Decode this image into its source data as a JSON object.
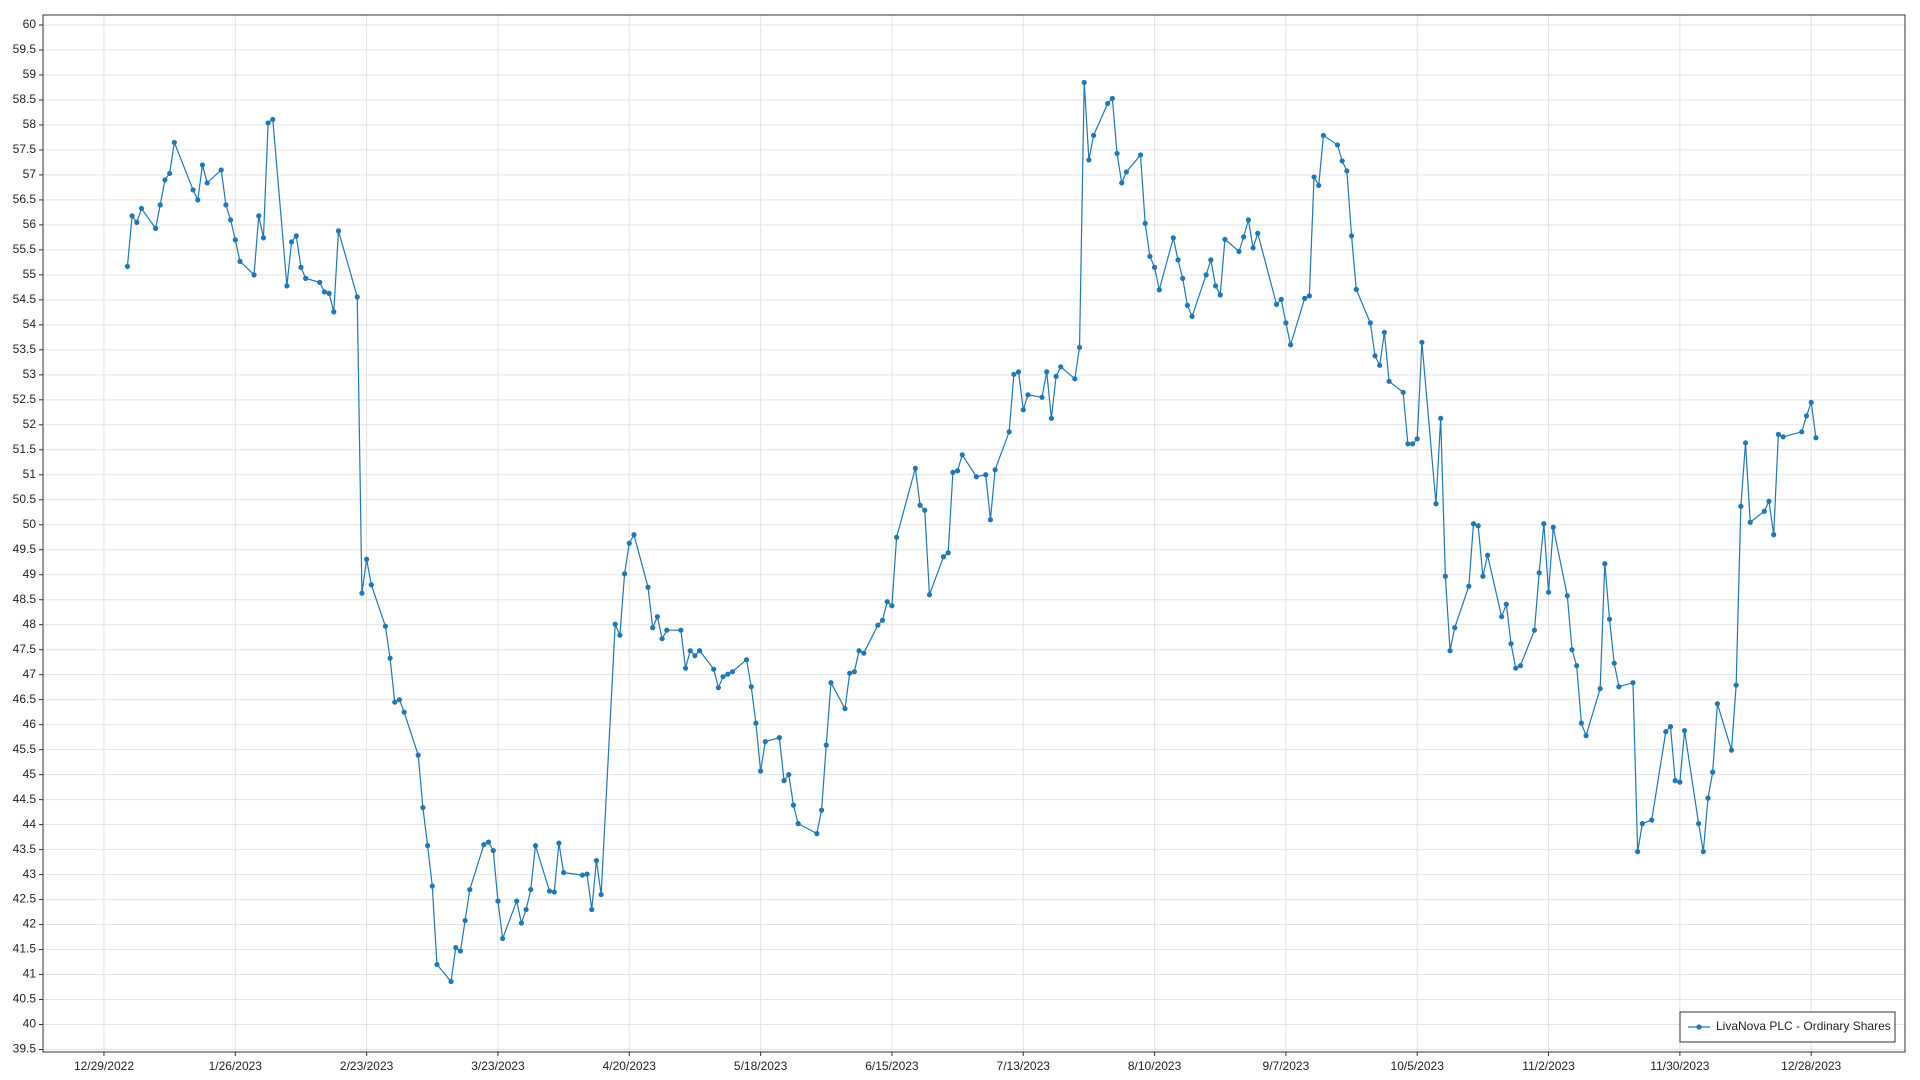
{
  "chart_data": {
    "type": "line",
    "series": [
      {
        "name": "LivaNova PLC - Ordinary Shares",
        "color": "#1f77b4",
        "x": [
          "2023-01-03",
          "2023-01-04",
          "2023-01-05",
          "2023-01-06",
          "2023-01-09",
          "2023-01-10",
          "2023-01-11",
          "2023-01-12",
          "2023-01-13",
          "2023-01-17",
          "2023-01-18",
          "2023-01-19",
          "2023-01-20",
          "2023-01-23",
          "2023-01-24",
          "2023-01-25",
          "2023-01-26",
          "2023-01-27",
          "2023-01-30",
          "2023-01-31",
          "2023-02-01",
          "2023-02-02",
          "2023-02-03",
          "2023-02-06",
          "2023-02-07",
          "2023-02-08",
          "2023-02-09",
          "2023-02-10",
          "2023-02-13",
          "2023-02-14",
          "2023-02-15",
          "2023-02-16",
          "2023-02-17",
          "2023-02-21",
          "2023-02-22",
          "2023-02-23",
          "2023-02-24",
          "2023-02-27",
          "2023-02-28",
          "2023-03-01",
          "2023-03-02",
          "2023-03-03",
          "2023-03-06",
          "2023-03-07",
          "2023-03-08",
          "2023-03-09",
          "2023-03-10",
          "2023-03-13",
          "2023-03-14",
          "2023-03-15",
          "2023-03-16",
          "2023-03-17",
          "2023-03-20",
          "2023-03-21",
          "2023-03-22",
          "2023-03-23",
          "2023-03-24",
          "2023-03-27",
          "2023-03-28",
          "2023-03-29",
          "2023-03-30",
          "2023-03-31",
          "2023-04-03",
          "2023-04-04",
          "2023-04-05",
          "2023-04-06",
          "2023-04-10",
          "2023-04-11",
          "2023-04-12",
          "2023-04-13",
          "2023-04-14",
          "2023-04-17",
          "2023-04-18",
          "2023-04-19",
          "2023-04-20",
          "2023-04-21",
          "2023-04-24",
          "2023-04-25",
          "2023-04-26",
          "2023-04-27",
          "2023-04-28",
          "2023-05-01",
          "2023-05-02",
          "2023-05-03",
          "2023-05-04",
          "2023-05-05",
          "2023-05-08",
          "2023-05-09",
          "2023-05-10",
          "2023-05-11",
          "2023-05-12",
          "2023-05-15",
          "2023-05-16",
          "2023-05-17",
          "2023-05-18",
          "2023-05-19",
          "2023-05-22",
          "2023-05-23",
          "2023-05-24",
          "2023-05-25",
          "2023-05-26",
          "2023-05-30",
          "2023-05-31",
          "2023-06-01",
          "2023-06-02",
          "2023-06-05",
          "2023-06-06",
          "2023-06-07",
          "2023-06-08",
          "2023-06-09",
          "2023-06-12",
          "2023-06-13",
          "2023-06-14",
          "2023-06-15",
          "2023-06-16",
          "2023-06-20",
          "2023-06-21",
          "2023-06-22",
          "2023-06-23",
          "2023-06-26",
          "2023-06-27",
          "2023-06-28",
          "2023-06-29",
          "2023-06-30",
          "2023-07-03",
          "2023-07-05",
          "2023-07-06",
          "2023-07-07",
          "2023-07-10",
          "2023-07-11",
          "2023-07-12",
          "2023-07-13",
          "2023-07-14",
          "2023-07-17",
          "2023-07-18",
          "2023-07-19",
          "2023-07-20",
          "2023-07-21",
          "2023-07-24",
          "2023-07-25",
          "2023-07-26",
          "2023-07-27",
          "2023-07-28",
          "2023-07-31",
          "2023-08-01",
          "2023-08-02",
          "2023-08-03",
          "2023-08-04",
          "2023-08-07",
          "2023-08-08",
          "2023-08-09",
          "2023-08-10",
          "2023-08-11",
          "2023-08-14",
          "2023-08-15",
          "2023-08-16",
          "2023-08-17",
          "2023-08-18",
          "2023-08-21",
          "2023-08-22",
          "2023-08-23",
          "2023-08-24",
          "2023-08-25",
          "2023-08-28",
          "2023-08-29",
          "2023-08-30",
          "2023-08-31",
          "2023-09-01",
          "2023-09-05",
          "2023-09-06",
          "2023-09-07",
          "2023-09-08",
          "2023-09-11",
          "2023-09-12",
          "2023-09-13",
          "2023-09-14",
          "2023-09-15",
          "2023-09-18",
          "2023-09-19",
          "2023-09-20",
          "2023-09-21",
          "2023-09-22",
          "2023-09-25",
          "2023-09-26",
          "2023-09-27",
          "2023-09-28",
          "2023-09-29",
          "2023-10-02",
          "2023-10-03",
          "2023-10-04",
          "2023-10-05",
          "2023-10-06",
          "2023-10-09",
          "2023-10-10",
          "2023-10-11",
          "2023-10-12",
          "2023-10-13",
          "2023-10-16",
          "2023-10-17",
          "2023-10-18",
          "2023-10-19",
          "2023-10-20",
          "2023-10-23",
          "2023-10-24",
          "2023-10-25",
          "2023-10-26",
          "2023-10-27",
          "2023-10-30",
          "2023-10-31",
          "2023-11-01",
          "2023-11-02",
          "2023-11-03",
          "2023-11-06",
          "2023-11-07",
          "2023-11-08",
          "2023-11-09",
          "2023-11-10",
          "2023-11-13",
          "2023-11-14",
          "2023-11-15",
          "2023-11-16",
          "2023-11-17",
          "2023-11-20",
          "2023-11-21",
          "2023-11-22",
          "2023-11-24",
          "2023-11-27",
          "2023-11-28",
          "2023-11-29",
          "2023-11-30",
          "2023-12-01",
          "2023-12-04",
          "2023-12-05",
          "2023-12-06",
          "2023-12-07",
          "2023-12-08",
          "2023-12-11",
          "2023-12-12",
          "2023-12-13",
          "2023-12-14",
          "2023-12-15",
          "2023-12-18",
          "2023-12-19",
          "2023-12-20",
          "2023-12-21",
          "2023-12-22",
          "2023-12-26",
          "2023-12-27",
          "2023-12-28",
          "2023-12-29"
        ],
        "values": [
          55.17,
          56.18,
          56.05,
          56.33,
          55.93,
          56.4,
          56.9,
          57.03,
          57.65,
          56.7,
          56.5,
          57.2,
          56.84,
          57.1,
          56.4,
          56.1,
          55.7,
          55.27,
          55.0,
          56.18,
          55.74,
          58.04,
          58.11,
          54.78,
          55.66,
          55.78,
          55.15,
          54.93,
          54.85,
          54.66,
          54.63,
          54.26,
          55.88,
          54.56,
          48.63,
          49.31,
          48.8,
          47.97,
          47.33,
          46.45,
          46.5,
          46.25,
          45.39,
          44.34,
          43.58,
          42.77,
          41.2,
          40.86,
          41.54,
          41.47,
          42.08,
          42.7,
          43.6,
          43.65,
          43.48,
          42.47,
          41.72,
          42.47,
          42.03,
          42.3,
          42.7,
          43.58,
          42.67,
          42.65,
          43.63,
          43.04,
          42.99,
          43.01,
          42.3,
          43.28,
          42.6,
          48.01,
          47.79,
          49.02,
          49.63,
          49.8,
          48.75,
          47.94,
          48.16,
          47.72,
          47.89,
          47.89,
          47.13,
          47.48,
          47.38,
          47.48,
          47.11,
          46.74,
          46.96,
          47.01,
          47.06,
          47.3,
          46.76,
          46.03,
          45.07,
          45.66,
          45.74,
          44.88,
          45.0,
          44.39,
          44.02,
          43.82,
          44.29,
          45.59,
          46.84,
          46.32,
          47.03,
          47.06,
          47.48,
          47.43,
          47.99,
          48.09,
          48.46,
          48.38,
          49.75,
          51.13,
          50.39,
          50.29,
          48.6,
          49.36,
          49.44,
          51.05,
          51.08,
          51.4,
          50.96,
          51.0,
          50.1,
          51.1,
          51.86,
          53.01,
          53.06,
          52.3,
          52.6,
          52.55,
          53.06,
          52.13,
          52.97,
          53.16,
          52.92,
          53.55,
          58.85,
          57.3,
          57.79,
          58.43,
          58.53,
          57.43,
          56.84,
          57.06,
          57.4,
          56.03,
          55.37,
          55.15,
          54.7,
          55.74,
          55.3,
          54.93,
          54.39,
          54.17,
          55.0,
          55.3,
          54.78,
          54.6,
          55.71,
          55.47,
          55.76,
          56.1,
          55.54,
          55.83,
          54.41,
          54.51,
          54.04,
          53.6,
          54.53,
          54.58,
          56.96,
          56.79,
          57.79,
          57.6,
          57.28,
          57.08,
          55.78,
          54.71,
          54.04,
          53.38,
          53.19,
          53.85,
          52.87,
          52.65,
          51.62,
          51.62,
          51.72,
          53.65,
          50.42,
          52.13,
          48.97,
          47.48,
          47.94,
          48.77,
          50.02,
          49.98,
          48.97,
          49.39,
          48.16,
          48.41,
          47.62,
          47.13,
          47.18,
          47.89,
          49.04,
          50.02,
          48.65,
          49.95,
          48.58,
          47.5,
          47.18,
          46.03,
          45.78,
          46.72,
          49.22,
          48.11,
          47.23,
          46.76,
          46.84,
          43.46,
          44.02,
          44.09,
          45.86,
          45.96,
          44.88,
          44.85,
          45.88,
          44.02,
          43.46,
          44.53,
          45.05,
          46.42,
          45.49,
          46.79,
          50.37,
          51.64,
          50.05,
          50.27,
          50.47,
          49.8,
          51.81,
          51.76,
          51.86,
          52.18,
          52.45,
          51.74
        ]
      }
    ],
    "xlim": [
      "2022-12-16",
      "2024-01-17"
    ],
    "xticks": [
      {
        "value": "2022-12-29",
        "label": "12/29/2022"
      },
      {
        "value": "2023-01-26",
        "label": "1/26/2023"
      },
      {
        "value": "2023-02-23",
        "label": "2/23/2023"
      },
      {
        "value": "2023-03-23",
        "label": "3/23/2023"
      },
      {
        "value": "2023-04-20",
        "label": "4/20/2023"
      },
      {
        "value": "2023-05-18",
        "label": "5/18/2023"
      },
      {
        "value": "2023-06-15",
        "label": "6/15/2023"
      },
      {
        "value": "2023-07-13",
        "label": "7/13/2023"
      },
      {
        "value": "2023-08-10",
        "label": "8/10/2023"
      },
      {
        "value": "2023-09-07",
        "label": "9/7/2023"
      },
      {
        "value": "2023-10-05",
        "label": "10/5/2023"
      },
      {
        "value": "2023-11-02",
        "label": "11/2/2023"
      },
      {
        "value": "2023-11-30",
        "label": "11/30/2023"
      },
      {
        "value": "2023-12-28",
        "label": "12/28/2023"
      }
    ],
    "ylim": [
      39.45,
      60.2
    ],
    "yticks": [
      39.5,
      40,
      40.5,
      41,
      41.5,
      42,
      42.5,
      43,
      43.5,
      44,
      44.5,
      45,
      45.5,
      46,
      46.5,
      47,
      47.5,
      48,
      48.5,
      49,
      49.5,
      50,
      50.5,
      51,
      51.5,
      52,
      52.5,
      53,
      53.5,
      54,
      54.5,
      55,
      55.5,
      56,
      56.5,
      57,
      57.5,
      58,
      58.5,
      59,
      59.5,
      60
    ],
    "grid": true,
    "markers": true,
    "legend": "lower right"
  }
}
